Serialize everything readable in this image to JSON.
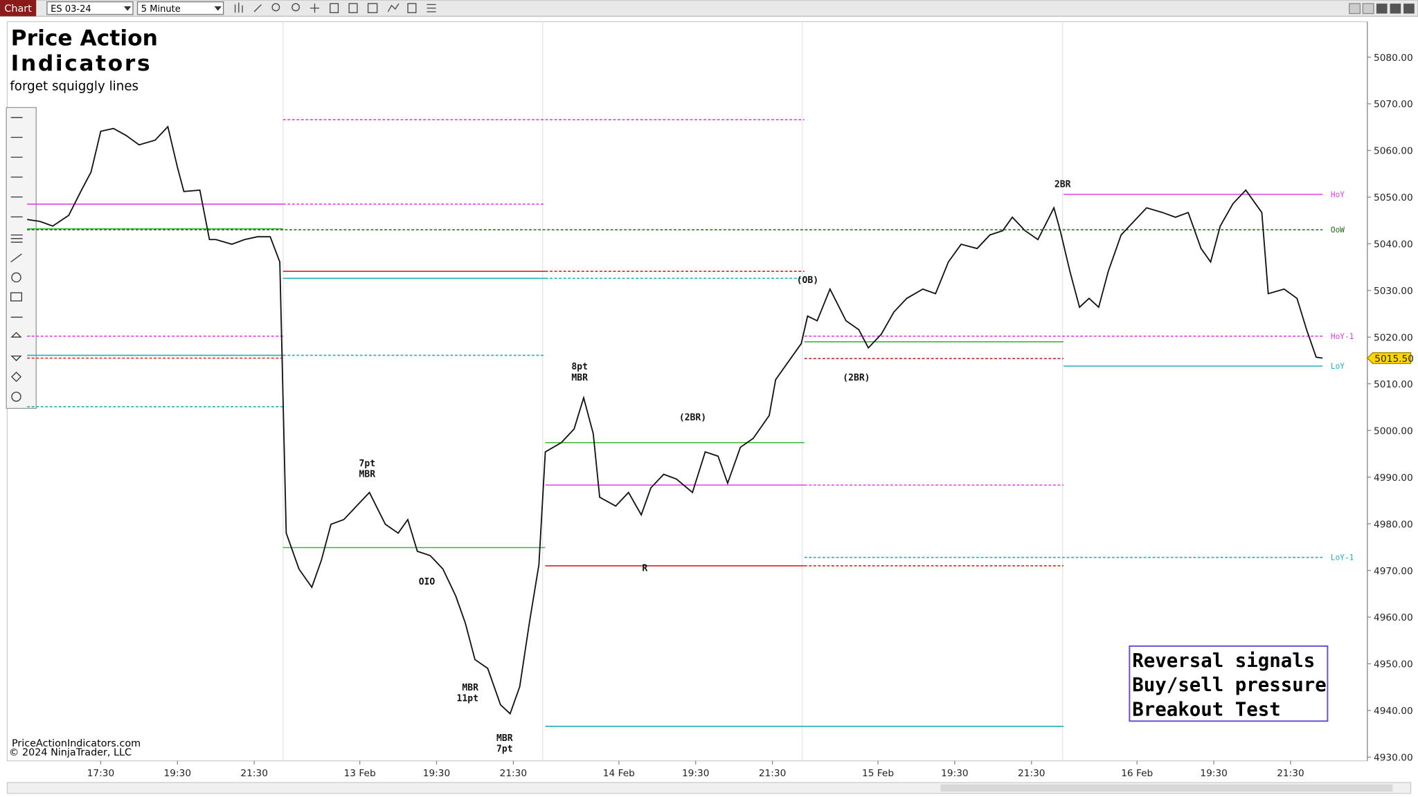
{
  "toolbar": {
    "tab": "Chart",
    "instrument": "ES 03-24",
    "interval": "5 Minute"
  },
  "branding": {
    "title_line1": "Price Action",
    "title_line2": "Indicators",
    "tagline": "forget squiggly lines",
    "site": "PriceActionIndicators.com",
    "copyright": "© 2024 NinjaTrader, LLC"
  },
  "legend_box": [
    "Reversal signals",
    "Buy/sell pressure",
    "Breakout Test"
  ],
  "chart_data": {
    "type": "line",
    "x": [
      0,
      4,
      8,
      13,
      17,
      20,
      23,
      27,
      31,
      35,
      40,
      44,
      47,
      49,
      54,
      57,
      59,
      64,
      68,
      72,
      76,
      79,
      81,
      85,
      89,
      92,
      95,
      99,
      103,
      107,
      112,
      116,
      119,
      122,
      126,
      130,
      134,
      137,
      140,
      144,
      148,
      151,
      154,
      157,
      160,
      162,
      167,
      171,
      174,
      177,
      179,
      184,
      188,
      192,
      195,
      199,
      203,
      208,
      212,
      216,
      219,
      223,
      227,
      232,
      234,
      239,
      242,
      244,
      247,
      251,
      256,
      260,
      263,
      267,
      271,
      275,
      280,
      284,
      288,
      292,
      297,
      301,
      305,
      308,
      312,
      316,
      321,
      323,
      326,
      329,
      332,
      335,
      338,
      342,
      346,
      350,
      355,
      359,
      363,
      367,
      370,
      373,
      377,
      381,
      386,
      388,
      393,
      397,
      400,
      403,
      405
    ],
    "series": [
      {
        "name": "ES 03-24",
        "color": "#111111",
        "values": [
          5045.2,
          5044.8,
          5043.8,
          5046.1,
          5051.5,
          5055.4,
          5064.1,
          5064.7,
          5063.2,
          5061.2,
          5062.2,
          5065.1,
          5056.4,
          5051.2,
          5051.5,
          5040.9,
          5040.9,
          5039.9,
          5040.9,
          5041.5,
          5041.5,
          5036.1,
          4978.0,
          4970.3,
          4966.4,
          4972.2,
          4979.9,
          4980.9,
          4983.8,
          4986.7,
          4979.9,
          4978.0,
          4980.9,
          4974.1,
          4973.2,
          4970.3,
          4964.5,
          4958.7,
          4950.9,
          4949.0,
          4941.2,
          4939.3,
          4945.1,
          4958.7,
          4971.2,
          4995.4,
          4997.4,
          5000.3,
          5007.0,
          4999.3,
          4985.7,
          4983.8,
          4986.7,
          4981.9,
          4987.7,
          4990.6,
          4989.6,
          4986.7,
          4995.4,
          4994.5,
          4988.7,
          4996.4,
          4998.3,
          5003.2,
          5010.9,
          5015.7,
          5018.6,
          5024.5,
          5023.5,
          5030.3,
          5023.5,
          5021.6,
          5017.7,
          5020.6,
          5025.4,
          5028.3,
          5030.3,
          5029.3,
          5036.1,
          5039.9,
          5039.0,
          5041.9,
          5042.8,
          5045.7,
          5042.8,
          5040.9,
          5047.7,
          5042.8,
          5034.1,
          5026.4,
          5028.3,
          5026.4,
          5034.1,
          5041.9,
          5044.8,
          5047.7,
          5046.7,
          5045.7,
          5046.7,
          5039.0,
          5036.1,
          5043.8,
          5048.6,
          5051.5,
          5046.7,
          5029.3,
          5030.3,
          5028.3,
          5021.6,
          5015.7,
          5015.5
        ]
      }
    ],
    "xlim": [
      0,
      419
    ],
    "xticks": [
      {
        "value": 23,
        "label": "17:30"
      },
      {
        "value": 47,
        "label": "19:30"
      },
      {
        "value": 71,
        "label": "21:30"
      },
      {
        "value": 104,
        "label": "13 Feb"
      },
      {
        "value": 128,
        "label": "19:30"
      },
      {
        "value": 152,
        "label": "21:30"
      },
      {
        "value": 185,
        "label": "14 Feb"
      },
      {
        "value": 209,
        "label": "19:30"
      },
      {
        "value": 233,
        "label": "21:30"
      },
      {
        "value": 266,
        "label": "15 Feb"
      },
      {
        "value": 290,
        "label": "19:30"
      },
      {
        "value": 314,
        "label": "21:30"
      },
      {
        "value": 347,
        "label": "16 Feb"
      },
      {
        "value": 371,
        "label": "19:30"
      },
      {
        "value": 395,
        "label": "21:30"
      }
    ],
    "ylim": [
      4929.2,
      5087.4
    ],
    "yticks": [
      {
        "value": 4930,
        "label": "4930.00"
      },
      {
        "value": 4940,
        "label": "4940.00"
      },
      {
        "value": 4950,
        "label": "4950.00"
      },
      {
        "value": 4960,
        "label": "4960.00"
      },
      {
        "value": 4970,
        "label": "4970.00"
      },
      {
        "value": 4980,
        "label": "4980.00"
      },
      {
        "value": 4990,
        "label": "4990.00"
      },
      {
        "value": 5000,
        "label": "5000.00"
      },
      {
        "value": 5010,
        "label": "5010.00"
      },
      {
        "value": 5020,
        "label": "5020.00"
      },
      {
        "value": 5030,
        "label": "5030.00"
      },
      {
        "value": 5040,
        "label": "5040.00"
      },
      {
        "value": 5050,
        "label": "5050.00"
      },
      {
        "value": 5060,
        "label": "5060.00"
      },
      {
        "value": 5070,
        "label": "5070.00"
      },
      {
        "value": 5080,
        "label": "5080.00"
      }
    ],
    "last": {
      "value": 5015.5,
      "label": "5015.50"
    },
    "levels": [
      {
        "value": 5066.6,
        "from": 80,
        "to": 243,
        "color": "#e040e0",
        "dashed": true
      },
      {
        "value": 5048.5,
        "from": 0,
        "to": 80,
        "color": "#e040e0",
        "dashed": false
      },
      {
        "value": 5048.5,
        "from": 80,
        "to": 162,
        "color": "#e040e0",
        "dashed": true
      },
      {
        "value": 5043.2,
        "from": 0,
        "to": 80,
        "color": "#3cb43c",
        "dashed": false
      },
      {
        "value": 5034.1,
        "from": 80,
        "to": 162,
        "color": "#e02020",
        "dashed": false
      },
      {
        "value": 5034.1,
        "from": 162,
        "to": 243,
        "color": "#e02020",
        "dashed": true
      },
      {
        "value": 5032.6,
        "from": 80,
        "to": 162,
        "color": "#20b0b0",
        "dashed": false
      },
      {
        "value": 5032.6,
        "from": 162,
        "to": 243,
        "color": "#20b0b0",
        "dashed": true
      },
      {
        "value": 5020.2,
        "from": 0,
        "to": 80,
        "color": "#e040e0",
        "dashed": true
      },
      {
        "value": 5016.1,
        "from": 0,
        "to": 80,
        "color": "#20b0b0",
        "dashed": false
      },
      {
        "value": 5016.1,
        "from": 80,
        "to": 162,
        "color": "#20b0b0",
        "dashed": true
      },
      {
        "value": 5015.5,
        "from": 0,
        "to": 80,
        "color": "#e02020",
        "dashed": true
      },
      {
        "value": 5005.1,
        "from": 0,
        "to": 80,
        "color": "#20b0b0",
        "dashed": true
      },
      {
        "value": 4974.9,
        "from": 80,
        "to": 162,
        "color": "#3cb43c",
        "dashed": false
      },
      {
        "value": 4997.4,
        "from": 162,
        "to": 243,
        "color": "#3cb43c",
        "dashed": false
      },
      {
        "value": 4988.3,
        "from": 162,
        "to": 243,
        "color": "#e040e0",
        "dashed": false
      },
      {
        "value": 4988.3,
        "from": 243,
        "to": 324,
        "color": "#e040e0",
        "dashed": true
      },
      {
        "value": 4971.0,
        "from": 162,
        "to": 243,
        "color": "#e02020",
        "dashed": false
      },
      {
        "value": 4971.0,
        "from": 243,
        "to": 324,
        "color": "#e02020",
        "dashed": true
      },
      {
        "value": 4936.6,
        "from": 162,
        "to": 324,
        "color": "#20b0b0",
        "dashed": false
      },
      {
        "value": 5019.0,
        "from": 243,
        "to": 324,
        "color": "#3cb43c",
        "dashed": false
      },
      {
        "value": 5015.4,
        "from": 243,
        "to": 324,
        "color": "#c02020",
        "dashed": true
      },
      {
        "name": "HoY",
        "value": 5050.6,
        "from": 324,
        "to": 405,
        "color": "#e040e0",
        "dashed": false
      },
      {
        "name": "OoW",
        "value": 5043.0,
        "from": 0,
        "to": 405,
        "color": "#1a6a1a",
        "dashed": true
      },
      {
        "name": "HoY-1",
        "value": 5020.2,
        "from": 243,
        "to": 405,
        "color": "#e040e0",
        "dashed": true
      },
      {
        "name": "LoY",
        "value": 5013.8,
        "from": 324,
        "to": 405,
        "color": "#20b0c0",
        "dashed": false
      },
      {
        "name": "LoY-1",
        "value": 4972.8,
        "from": 243,
        "to": 405,
        "color": "#20b0c0",
        "dashed": true
      }
    ],
    "annotations": [
      "7pt",
      "MBR",
      "OIO",
      "MBR",
      "11pt",
      "MBR",
      "7pt",
      "8pt",
      "MBR",
      "(2BR)",
      "R",
      "(OB)",
      "(2BR)",
      "2BR"
    ]
  }
}
